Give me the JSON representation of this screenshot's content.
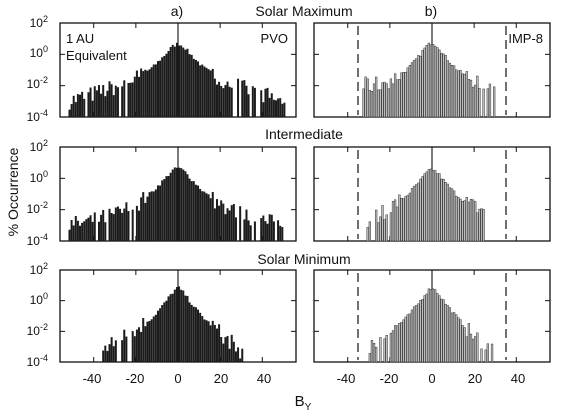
{
  "figure": {
    "panel_a_label": "a)",
    "panel_b_label": "b)",
    "row_titles": [
      "Solar Maximum",
      "Intermediate",
      "Solar Minimum"
    ],
    "panel_a_note_line1": "1 AU",
    "panel_a_note_line2": "Equivalent",
    "panel_a_series_label": "PVO",
    "panel_b_series_label": "IMP-8",
    "ylabel": "% Occurrence",
    "xlabel_main": "B",
    "xlabel_sub": "Y"
  },
  "chart_data": [
    {
      "type": "bar",
      "panel": "a)",
      "row": "Solar Maximum",
      "series": "PVO",
      "fill": "#1b1b1b",
      "x_range": [
        -56,
        56
      ],
      "y_scale": "log",
      "y_range": [
        0.0001,
        100
      ],
      "y_ticks": [
        "10^2",
        "10^0",
        "10^-2",
        "10^-4"
      ],
      "x_ticks": [
        -40,
        -20,
        0,
        20,
        40
      ],
      "data_extent": [
        -52,
        50
      ],
      "peak_x": 0,
      "peak_percent": 5,
      "profile_x": [
        -52,
        -40,
        -30,
        -20,
        -12,
        -6,
        -3,
        0,
        3,
        6,
        12,
        20,
        30,
        40,
        50
      ],
      "profile_percent": [
        0.001,
        0.003,
        0.008,
        0.03,
        0.15,
        1,
        3,
        5,
        3,
        1,
        0.15,
        0.03,
        0.008,
        0.003,
        0.001
      ]
    },
    {
      "type": "bar",
      "panel": "b)",
      "row": "Solar Maximum",
      "series": "IMP-8",
      "fill": "#bdbdbd",
      "x_range": [
        -56,
        56
      ],
      "y_scale": "log",
      "y_range": [
        0.0001,
        100
      ],
      "x_ticks": [
        -40,
        -20,
        0,
        20,
        40
      ],
      "reference_lines_x": [
        -35,
        35
      ],
      "data_extent": [
        -33,
        31
      ],
      "peak_x": 0,
      "peak_percent": 6,
      "profile_x": [
        -33,
        -25,
        -18,
        -12,
        -6,
        -3,
        0,
        3,
        6,
        12,
        18,
        25,
        31
      ],
      "profile_percent": [
        0.01,
        0.012,
        0.03,
        0.1,
        0.8,
        3,
        6,
        3,
        0.8,
        0.1,
        0.03,
        0.012,
        0.01
      ]
    },
    {
      "type": "bar",
      "panel": "a)",
      "row": "Intermediate",
      "series": "PVO",
      "fill": "#1b1b1b",
      "x_range": [
        -56,
        56
      ],
      "y_scale": "log",
      "y_range": [
        0.0001,
        100
      ],
      "y_ticks": [
        "10^2",
        "10^0",
        "10^-2",
        "10^-4"
      ],
      "x_ticks": [
        -40,
        -20,
        0,
        20,
        40
      ],
      "data_extent": [
        -52,
        50
      ],
      "peak_x": 0,
      "peak_percent": 5,
      "profile_x": [
        -52,
        -40,
        -30,
        -20,
        -12,
        -6,
        -3,
        0,
        3,
        6,
        12,
        20,
        30,
        40,
        50
      ],
      "profile_percent": [
        0.001,
        0.002,
        0.005,
        0.02,
        0.15,
        1,
        3,
        5,
        3,
        1,
        0.15,
        0.02,
        0.005,
        0.002,
        0.001
      ]
    },
    {
      "type": "bar",
      "panel": "b)",
      "row": "Intermediate",
      "series": "IMP-8",
      "fill": "#bdbdbd",
      "x_range": [
        -56,
        56
      ],
      "y_scale": "log",
      "y_range": [
        0.0001,
        100
      ],
      "x_ticks": [
        -40,
        -20,
        0,
        20,
        40
      ],
      "reference_lines_x": [
        -35,
        35
      ],
      "data_extent": [
        -31,
        24
      ],
      "peak_x": 0,
      "peak_percent": 4,
      "profile_x": [
        -31,
        -24,
        -18,
        -12,
        -6,
        -3,
        0,
        3,
        6,
        12,
        18,
        24
      ],
      "profile_percent": [
        0.002,
        0.006,
        0.02,
        0.08,
        0.6,
        2,
        4,
        2,
        0.6,
        0.08,
        0.02,
        0.01
      ]
    },
    {
      "type": "bar",
      "panel": "a)",
      "row": "Solar Minimum",
      "series": "PVO",
      "fill": "#1b1b1b",
      "x_range": [
        -56,
        56
      ],
      "y_scale": "log",
      "y_range": [
        0.0001,
        100
      ],
      "y_ticks": [
        "10^2",
        "10^0",
        "10^-2",
        "10^-4"
      ],
      "x_ticks": [
        -40,
        -20,
        0,
        20,
        40
      ],
      "data_extent": [
        -36,
        30
      ],
      "peak_x": 0,
      "peak_percent": 8,
      "profile_x": [
        -36,
        -28,
        -20,
        -12,
        -6,
        -3,
        0,
        3,
        6,
        12,
        20,
        25,
        30
      ],
      "profile_percent": [
        0.0005,
        0.003,
        0.015,
        0.08,
        0.8,
        3,
        8,
        3,
        0.8,
        0.08,
        0.008,
        0.002,
        0.0005
      ]
    },
    {
      "type": "bar",
      "panel": "b)",
      "row": "Solar Minimum",
      "series": "IMP-8",
      "fill": "#bdbdbd",
      "x_range": [
        -56,
        56
      ],
      "y_scale": "log",
      "y_range": [
        0.0001,
        100
      ],
      "x_ticks": [
        -40,
        -20,
        0,
        20,
        40
      ],
      "reference_lines_x": [
        -35,
        35
      ],
      "data_extent": [
        -30,
        28
      ],
      "peak_x": 0,
      "peak_percent": 8,
      "profile_x": [
        -30,
        -25,
        -18,
        -12,
        -6,
        -3,
        0,
        3,
        6,
        12,
        18,
        22,
        28
      ],
      "profile_percent": [
        0.0005,
        0.003,
        0.015,
        0.08,
        0.8,
        3,
        8,
        3,
        0.8,
        0.08,
        0.008,
        0.003,
        0.0005
      ]
    }
  ]
}
